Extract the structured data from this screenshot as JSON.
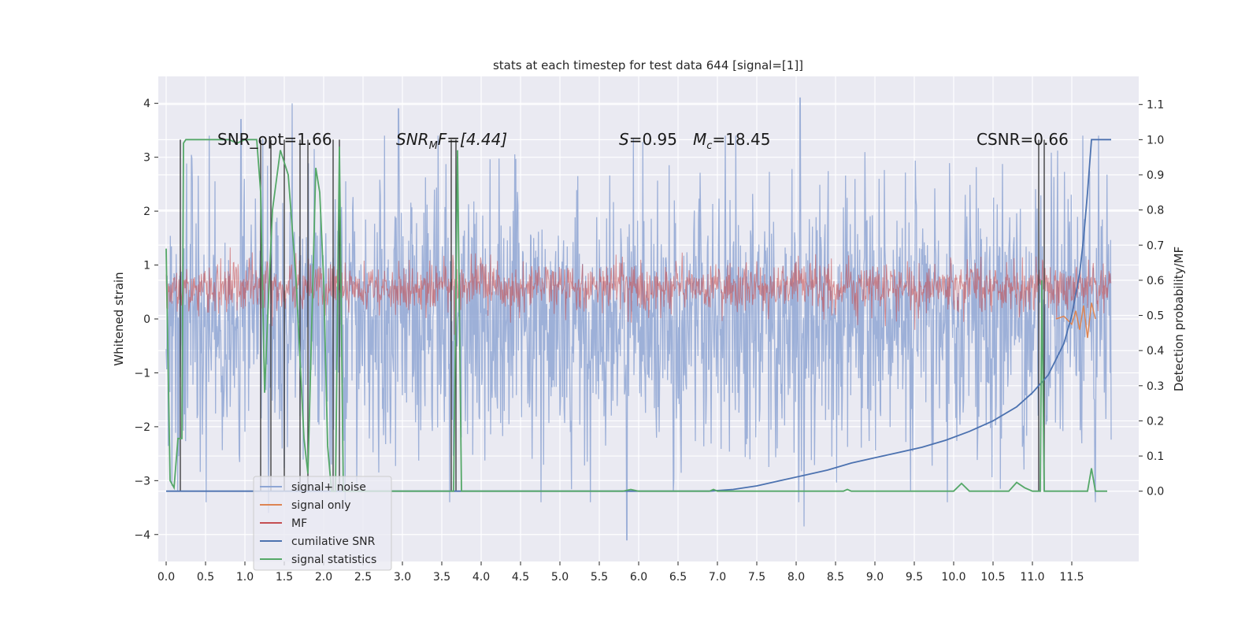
{
  "chart_data": {
    "type": "line",
    "title": "stats at each timestep for test data 644 [signal=[1]]",
    "xlabel": "",
    "ylabel": "Whitened strain",
    "y2label": "Detection probability/MF",
    "xlim": [
      -0.1,
      12.35
    ],
    "ylim": [
      -4.5,
      4.5
    ],
    "y2lim": [
      -0.2,
      1.18
    ],
    "x_ticks": [
      0.0,
      0.5,
      1.0,
      1.5,
      2.0,
      2.5,
      3.0,
      3.5,
      4.0,
      4.5,
      5.0,
      5.5,
      6.0,
      6.5,
      7.0,
      7.5,
      8.0,
      8.5,
      9.0,
      9.5,
      10.0,
      10.5,
      11.0,
      11.5
    ],
    "x_tick_labels": [
      "0.0",
      "0.5",
      "1.0",
      "1.5",
      "2.0",
      "2.5",
      "3.0",
      "3.5",
      "4.0",
      "4.5",
      "5.0",
      "5.5",
      "6.0",
      "6.5",
      "7.0",
      "7.5",
      "8.0",
      "8.5",
      "9.0",
      "9.5",
      "10.0",
      "10.5",
      "11.0",
      "11.5"
    ],
    "y_ticks": [
      -4,
      -3,
      -2,
      -1,
      0,
      1,
      2,
      3,
      4
    ],
    "y_tick_labels": [
      "−4",
      "−3",
      "−2",
      "−1",
      "0",
      "1",
      "2",
      "3",
      "4"
    ],
    "y2_ticks": [
      0.0,
      0.1,
      0.2,
      0.3,
      0.4,
      0.5,
      0.6,
      0.7,
      0.8,
      0.9,
      1.0,
      1.1
    ],
    "y2_tick_labels": [
      "0.0",
      "0.1",
      "0.2",
      "0.3",
      "0.4",
      "0.5",
      "0.6",
      "0.7",
      "0.8",
      "0.9",
      "1.0",
      "1.1"
    ],
    "grid": true,
    "legend_position": "lower-left",
    "annotations": {
      "snr_opt": "SNR_opt=1.66",
      "snr_mf_main": "SNR",
      "snr_mf_sub": "M",
      "snr_mf_rest": "F=[4.44]",
      "s_label": "S",
      "s_value": "=0.95",
      "mc_label": "M",
      "mc_sub": "c",
      "mc_value": "=18.45",
      "csnr": "CSNR=0.66"
    },
    "series": [
      {
        "name": "signal+ noise",
        "color": "#8fa6d4",
        "axis": "left",
        "x_range": [
          0.0,
          12.0
        ],
        "amplitude_std": 1.3,
        "peaks": [
          [
            0.95,
            3.7
          ],
          [
            1.6,
            4.0
          ],
          [
            2.95,
            3.9
          ],
          [
            8.05,
            4.1
          ],
          [
            5.85,
            -4.1
          ],
          [
            8.1,
            -3.85
          ],
          [
            1.3,
            -3.6
          ]
        ]
      },
      {
        "name": "signal only",
        "color": "#dd8452",
        "axis": "left",
        "x": [
          11.3,
          11.4,
          11.5,
          11.55,
          11.6,
          11.65,
          11.7,
          11.75,
          11.8
        ],
        "y": [
          0.0,
          0.05,
          -0.1,
          0.15,
          -0.2,
          0.25,
          -0.35,
          0.3,
          0.0
        ]
      },
      {
        "name": "MF",
        "color": "#c44e52",
        "axis": "right",
        "x_range": [
          0.0,
          12.0
        ],
        "baseline": 0.58,
        "band": 0.06
      },
      {
        "name": "cumilative SNR",
        "color": "#4c72b0",
        "axis": "right",
        "x": [
          0.0,
          6.9,
          7.2,
          7.5,
          7.8,
          8.1,
          8.4,
          8.7,
          9.0,
          9.3,
          9.6,
          9.9,
          10.2,
          10.5,
          10.8,
          11.0,
          11.2,
          11.4,
          11.5,
          11.6,
          11.65,
          11.7,
          11.75,
          11.8,
          11.9,
          12.0
        ],
        "y": [
          0.0,
          0.0,
          0.005,
          0.015,
          0.03,
          0.045,
          0.06,
          0.08,
          0.095,
          0.11,
          0.125,
          0.145,
          0.17,
          0.2,
          0.24,
          0.28,
          0.33,
          0.42,
          0.5,
          0.62,
          0.72,
          0.85,
          1.0,
          1.0,
          1.0,
          1.0
        ]
      },
      {
        "name": "signal statistics",
        "color": "#55a868",
        "axis": "right",
        "x": [
          0.0,
          0.05,
          0.1,
          0.15,
          0.2,
          0.22,
          0.25,
          0.5,
          0.8,
          0.9,
          1.0,
          1.15,
          1.2,
          1.25,
          1.3,
          1.35,
          1.45,
          1.55,
          1.65,
          1.75,
          1.8,
          1.9,
          1.95,
          2.0,
          2.05,
          2.1,
          2.15,
          2.2,
          2.25,
          2.3,
          3.6,
          3.65,
          3.7,
          3.75,
          3.8,
          5.8,
          5.9,
          6.0,
          6.9,
          6.95,
          7.0,
          8.6,
          8.65,
          8.7,
          10.0,
          10.1,
          10.2,
          10.3,
          10.7,
          10.8,
          10.9,
          11.0,
          11.1,
          11.12,
          11.15,
          11.25,
          11.3,
          11.6,
          11.7,
          11.75,
          11.8,
          11.9,
          11.95
        ],
        "y": [
          0.69,
          0.03,
          0.01,
          0.15,
          0.15,
          0.99,
          1.0,
          1.0,
          1.0,
          0.99,
          1.0,
          1.0,
          0.85,
          0.28,
          0.55,
          0.8,
          0.97,
          0.9,
          0.6,
          0.15,
          0.05,
          0.92,
          0.85,
          0.6,
          0.13,
          0.0,
          0.0,
          0.98,
          0.0,
          0.0,
          0.0,
          0.0,
          0.97,
          0.0,
          0.0,
          0.0,
          0.005,
          0.0,
          0.0,
          0.005,
          0.0,
          0.0,
          0.005,
          0.0,
          0.0,
          0.022,
          0.0,
          0.0,
          0.0,
          0.025,
          0.01,
          0.0,
          0.0,
          0.6,
          0.0,
          0.0,
          0.0,
          0.0,
          0.0,
          0.065,
          0.0,
          0.0,
          0.0
        ]
      }
    ],
    "vertical_lines": [
      0.18,
      1.2,
      1.33,
      1.5,
      1.7,
      1.8,
      2.12,
      2.2,
      3.62,
      3.68,
      11.08,
      11.15
    ]
  }
}
